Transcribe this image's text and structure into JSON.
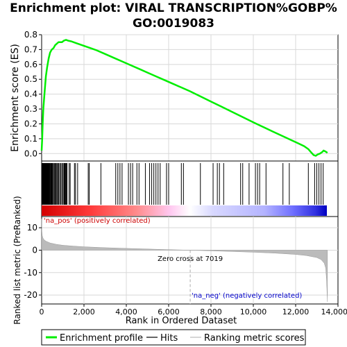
{
  "title_line1": "Enrichment plot: VIRAL TRANSCRIPTION%GOBP%",
  "title_line2": "GO:0019083",
  "chart_data": [
    {
      "type": "line",
      "panel": "enrichment",
      "ylabel": "Enrichment score (ES)",
      "ylim": [
        -0.05,
        0.8
      ],
      "yticks": [
        "0.0",
        "0.1",
        "0.2",
        "0.3",
        "0.4",
        "0.5",
        "0.6",
        "0.7",
        "0.8"
      ],
      "grid": true,
      "series": [
        {
          "name": "Enrichment profile",
          "color": "#00ee00",
          "x": [
            0,
            25,
            50,
            80,
            120,
            160,
            200,
            260,
            330,
            400,
            480,
            560,
            640,
            720,
            800,
            880,
            960,
            1050,
            1150,
            1250,
            1400,
            1600,
            1800,
            2000,
            2200,
            2400,
            2600,
            3000,
            3400,
            3800,
            4200,
            4600,
            5000,
            5400,
            5800,
            6200,
            6600,
            7000,
            7500,
            8000,
            8500,
            9000,
            9500,
            10000,
            10300,
            10600,
            10900,
            11200,
            11500,
            11800,
            12100,
            12400,
            12600,
            12750,
            12850,
            12950,
            13050,
            13150,
            13250,
            13320,
            13400,
            13500
          ],
          "y": [
            0.02,
            0.1,
            0.2,
            0.3,
            0.38,
            0.45,
            0.52,
            0.58,
            0.64,
            0.68,
            0.7,
            0.71,
            0.73,
            0.74,
            0.75,
            0.75,
            0.75,
            0.76,
            0.765,
            0.76,
            0.755,
            0.745,
            0.735,
            0.725,
            0.715,
            0.705,
            0.695,
            0.67,
            0.645,
            0.62,
            0.595,
            0.57,
            0.545,
            0.52,
            0.495,
            0.47,
            0.445,
            0.42,
            0.385,
            0.35,
            0.315,
            0.28,
            0.245,
            0.21,
            0.19,
            0.17,
            0.15,
            0.13,
            0.11,
            0.09,
            0.07,
            0.05,
            0.03,
            0.005,
            -0.01,
            -0.015,
            -0.005,
            0.0,
            0.01,
            0.02,
            0.015,
            0.005
          ]
        }
      ]
    },
    {
      "type": "scatter",
      "panel": "hits",
      "series": [
        {
          "name": "Hits",
          "color": "#000000",
          "x": [
            10,
            25,
            40,
            55,
            70,
            85,
            100,
            115,
            130,
            145,
            160,
            175,
            190,
            210,
            230,
            250,
            270,
            290,
            310,
            330,
            350,
            375,
            400,
            430,
            460,
            490,
            520,
            560,
            600,
            640,
            680,
            720,
            760,
            800,
            850,
            900,
            950,
            1000,
            1050,
            1080,
            1110,
            1140,
            1170,
            1200,
            1300,
            1350,
            1550,
            1600,
            1700,
            2200,
            2250,
            2800,
            3500,
            3600,
            3700,
            3800,
            4100,
            4200,
            4300,
            4500,
            4600,
            4900,
            5100,
            5200,
            5300,
            5400,
            5500,
            5600,
            5900,
            6000,
            6600,
            6700,
            7500,
            8100,
            8300,
            8400,
            8600,
            9400,
            9500,
            9800,
            10100,
            10200,
            10300,
            10600,
            11400,
            11700,
            12600,
            12900,
            13000,
            13100,
            13200,
            13300
          ]
        }
      ]
    },
    {
      "type": "area",
      "panel": "ranked_metric",
      "ylabel": "Ranked list metric (PreRanked)",
      "xlabel": "Rank in Ordered Dataset",
      "xlim": [
        0,
        14000
      ],
      "xticks": [
        "0",
        "2,000",
        "4,000",
        "6,000",
        "8,000",
        "10,000",
        "12,000",
        "14,000"
      ],
      "ylim": [
        -24,
        15
      ],
      "yticks": [
        "10",
        "0",
        "-10",
        "-20"
      ],
      "zero_cross_label": "Zero cross at 7019",
      "zero_cross": 7019,
      "pos_label": "'na_pos' (positively correlated)",
      "neg_label": "'na_neg' (negatively correlated)",
      "series": [
        {
          "name": "Ranking metric scores",
          "color": "#bbbbbb",
          "x": [
            0,
            10,
            30,
            60,
            100,
            200,
            400,
            700,
            1000,
            1500,
            2000,
            3000,
            4000,
            5000,
            6000,
            7019,
            8000,
            9000,
            10000,
            11000,
            12000,
            12500,
            13000,
            13200,
            13350,
            13420,
            13460,
            13500
          ],
          "y": [
            14,
            8.5,
            6.5,
            5.5,
            4.8,
            4.0,
            3.2,
            2.6,
            2.2,
            1.8,
            1.5,
            1.1,
            0.8,
            0.5,
            0.25,
            0,
            -0.3,
            -0.6,
            -0.9,
            -1.3,
            -1.9,
            -2.4,
            -3.3,
            -4.2,
            -5.8,
            -8.0,
            -13.0,
            -23.0
          ]
        }
      ]
    }
  ],
  "legend": [
    {
      "label": "Enrichment profile",
      "color": "#00ee00",
      "kind": "thick-line"
    },
    {
      "label": "Hits",
      "color": "#000000",
      "kind": "line"
    },
    {
      "label": "Ranking metric scores",
      "color": "#bbbbbb",
      "kind": "line"
    }
  ]
}
